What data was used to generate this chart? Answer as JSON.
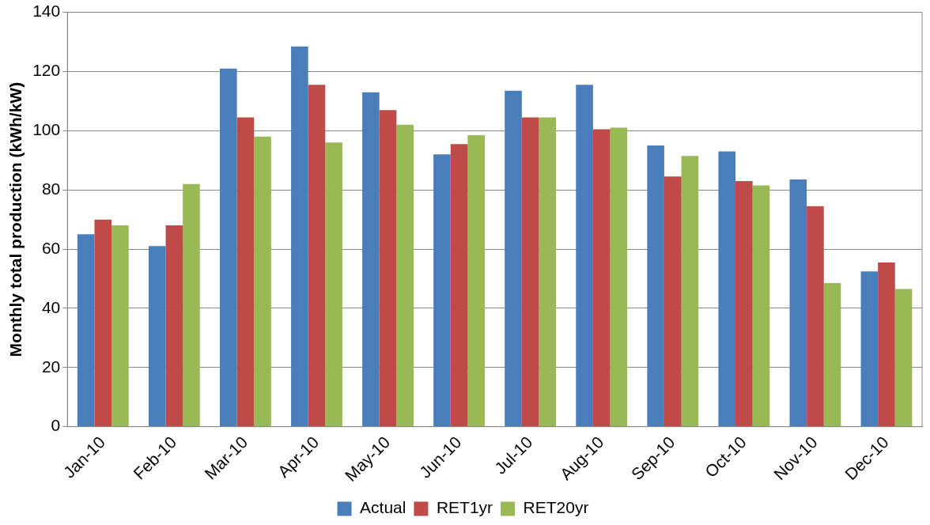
{
  "chart_data": {
    "type": "bar",
    "ylabel": "Monthly total production (kWh/kW)",
    "categories": [
      "Jan-10",
      "Feb-10",
      "Mar-10",
      "Apr-10",
      "May-10",
      "Jun-10",
      "Jul-10",
      "Aug-10",
      "Sep-10",
      "Oct-10",
      "Nov-10",
      "Dec-10"
    ],
    "series": [
      {
        "name": "Actual",
        "color": "#4a7ebb",
        "values": [
          65,
          61,
          121,
          128.5,
          113,
          92,
          113.5,
          115.5,
          95,
          93,
          83.5,
          52.5
        ]
      },
      {
        "name": "RET1yr",
        "color": "#be4b48",
        "values": [
          70,
          68,
          104.5,
          115.5,
          107,
          95.5,
          104.5,
          100.5,
          84.5,
          83,
          74.5,
          55.5
        ]
      },
      {
        "name": "RET20yr",
        "color": "#98b954",
        "values": [
          68,
          82,
          98,
          96,
          102,
          98.5,
          104.5,
          101,
          91.5,
          81.5,
          48.5,
          46.5
        ]
      }
    ],
    "ylim": [
      0,
      140
    ],
    "yticks": [
      0,
      20,
      40,
      60,
      80,
      100,
      120,
      140
    ],
    "grid": "y",
    "legend": "bottom"
  }
}
